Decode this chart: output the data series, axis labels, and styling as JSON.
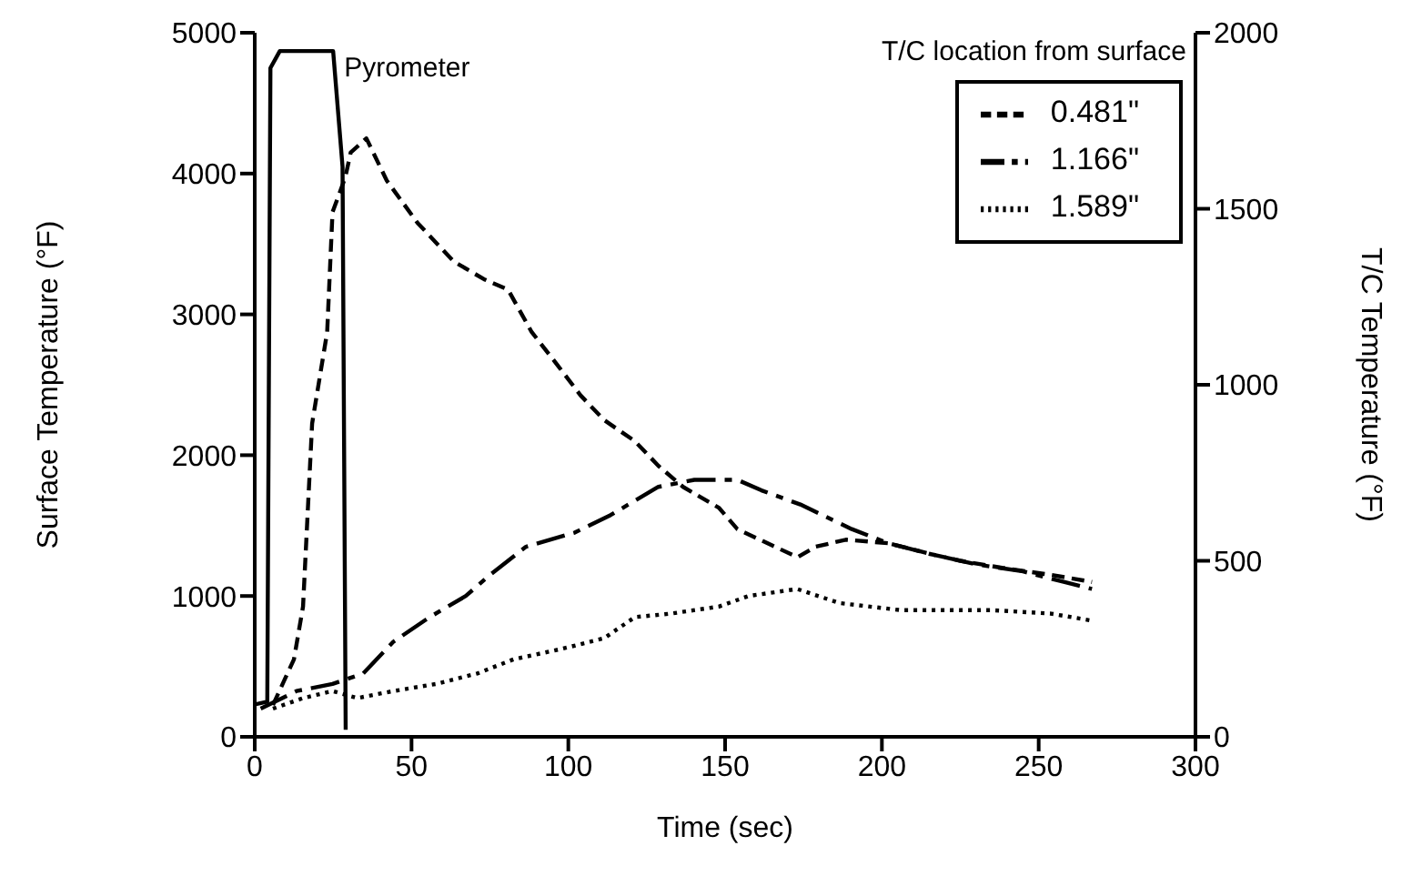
{
  "chart_data": {
    "type": "line",
    "xlabel": "Time (sec)",
    "ylabel": "Surface Temperature (°F)",
    "y2label": "T/C Temperature (°F)",
    "legend_title": "T/C location from surface",
    "xlim": [
      0,
      300
    ],
    "xticks": [
      0,
      50,
      100,
      150,
      200,
      250,
      300
    ],
    "ylim": [
      0,
      5000
    ],
    "yticks": [
      0,
      1000,
      2000,
      3000,
      4000,
      5000
    ],
    "y2lim": [
      0,
      2000
    ],
    "y2ticks": [
      0,
      500,
      1000,
      1500,
      2000
    ],
    "grid": false,
    "legend": "top right",
    "marker": "none",
    "series": [
      {
        "name": "Pyrometer",
        "color": "#000000",
        "line_style": "solid",
        "x": [
          0,
          4,
          5,
          8,
          25,
          28,
          29
        ],
        "values": [
          230,
          250,
          4750,
          4870,
          4870,
          4050,
          50
        ]
      },
      {
        "name": "0.481\"",
        "color": "#000000",
        "line_style": "dashed",
        "axis": "y2",
        "x": [
          5.8,
          12.5,
          15.4,
          18.3,
          23.1,
          24.8,
          28.9,
          30.6,
          35.6,
          42.1,
          51.9,
          63.5,
          73.1,
          80.8,
          88.3,
          96.2,
          103.9,
          111.4,
          121.2,
          128.7,
          136.6,
          148.1,
          153.9,
          173.1,
          178.9,
          188.5,
          202,
          215.2,
          225,
          238.3,
          253.9,
          267
        ],
        "values": [
          90,
          220,
          370,
          890,
          1150,
          1490,
          1590,
          1660,
          1700,
          1580,
          1460,
          1350,
          1300,
          1270,
          1150,
          1060,
          970,
          900,
          840,
          770,
          710,
          650,
          590,
          510,
          540,
          560,
          550,
          520,
          500,
          480,
          460,
          440
        ]
      },
      {
        "name": "1.166\"",
        "color": "#000000",
        "line_style": "dashdot",
        "axis": "y2",
        "x": [
          1.9,
          13.3,
          24.8,
          34.6,
          44.2,
          55.8,
          67.3,
          75,
          86.5,
          102,
          113.5,
          128.7,
          140.2,
          153.9,
          161.6,
          174,
          190.4,
          202,
          215,
          230,
          245,
          258,
          267
        ],
        "values": [
          80,
          130,
          150,
          180,
          270,
          340,
          400,
          460,
          540,
          580,
          630,
          710,
          730,
          730,
          700,
          660,
          590,
          550,
          520,
          490,
          470,
          440,
          420
        ]
      },
      {
        "name": "1.589\"",
        "color": "#000000",
        "line_style": "dotted",
        "axis": "y2",
        "x": [
          5.8,
          15.4,
          24.8,
          32.7,
          44.2,
          57.7,
          71,
          82.5,
          98,
          111.4,
          121.2,
          132.7,
          148,
          157.5,
          173,
          186.4,
          205.8,
          234.7,
          253.9,
          267
        ],
        "values": [
          80,
          110,
          130,
          110,
          130,
          150,
          180,
          220,
          250,
          280,
          340,
          350,
          370,
          400,
          420,
          380,
          360,
          360,
          350,
          330
        ]
      }
    ]
  }
}
